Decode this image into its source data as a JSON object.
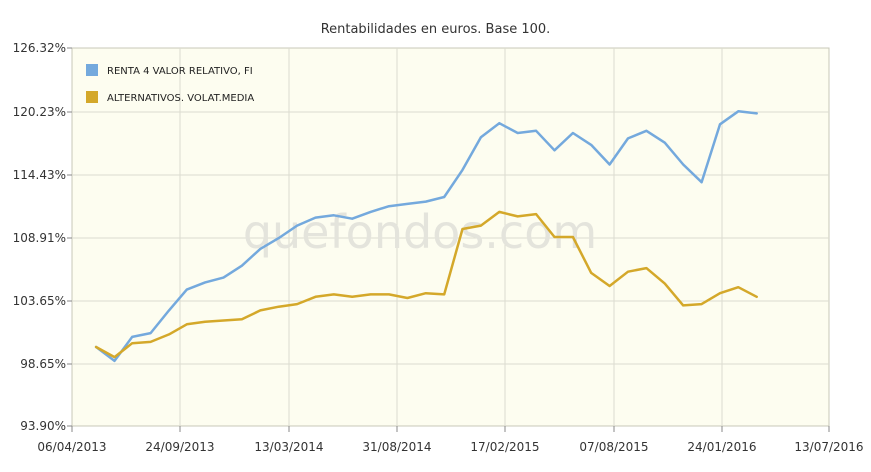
{
  "chart_data": {
    "type": "line",
    "title": "Rentabilidades en euros. Base 100.",
    "watermark": "quefondos.com",
    "xlabel": "",
    "ylabel": "",
    "x_ticks": [
      "06/04/2013",
      "24/09/2013",
      "13/03/2014",
      "31/08/2014",
      "17/02/2015",
      "07/08/2015",
      "24/01/2016",
      "13/07/2016"
    ],
    "y_ticks": [
      "126.32%",
      "120.23%",
      "114.43%",
      "108.91%",
      "103.65%",
      "98.65%",
      "93.90%"
    ],
    "ylim": [
      93.9,
      126.32
    ],
    "grid": true,
    "legend_position": "top-left",
    "series": [
      {
        "name": "RENTA 4 VALOR RELATIVO, FI",
        "color": "#74a9dd",
        "points": [
          [
            "2013-05-14",
            100.0
          ],
          [
            "2013-06-12",
            98.9
          ],
          [
            "2013-07-10",
            100.8
          ],
          [
            "2013-08-08",
            101.1
          ],
          [
            "2013-09-06",
            102.9
          ],
          [
            "2013-10-04",
            104.6
          ],
          [
            "2013-11-02",
            105.2
          ],
          [
            "2013-12-01",
            105.6
          ],
          [
            "2013-12-30",
            106.6
          ],
          [
            "2014-01-28",
            108.0
          ],
          [
            "2014-02-26",
            108.9
          ],
          [
            "2014-03-27",
            110.0
          ],
          [
            "2014-04-25",
            110.7
          ],
          [
            "2014-05-24",
            110.9
          ],
          [
            "2014-06-22",
            110.6
          ],
          [
            "2014-07-21",
            111.2
          ],
          [
            "2014-08-19",
            111.7
          ],
          [
            "2014-09-17",
            111.9
          ],
          [
            "2014-10-16",
            112.1
          ],
          [
            "2014-11-14",
            112.5
          ],
          [
            "2014-12-13",
            114.9
          ],
          [
            "2015-01-11",
            117.9
          ],
          [
            "2015-02-09",
            119.2
          ],
          [
            "2015-03-10",
            118.3
          ],
          [
            "2015-04-08",
            118.5
          ],
          [
            "2015-05-07",
            116.7
          ],
          [
            "2015-06-05",
            118.3
          ],
          [
            "2015-07-04",
            117.2
          ],
          [
            "2015-08-02",
            115.4
          ],
          [
            "2015-08-31",
            117.8
          ],
          [
            "2015-09-29",
            118.5
          ],
          [
            "2015-10-28",
            117.4
          ],
          [
            "2015-11-26",
            115.4
          ],
          [
            "2015-12-25",
            113.8
          ],
          [
            "2016-01-23",
            119.1
          ],
          [
            "2016-02-21",
            120.3
          ],
          [
            "2016-03-21",
            120.1
          ]
        ]
      },
      {
        "name": "ALTERNATIVOS. VOLAT.MEDIA",
        "color": "#d4a82a",
        "points": [
          [
            "2013-05-14",
            100.0
          ],
          [
            "2013-06-12",
            99.2
          ],
          [
            "2013-07-10",
            100.3
          ],
          [
            "2013-08-08",
            100.4
          ],
          [
            "2013-09-06",
            101.0
          ],
          [
            "2013-10-04",
            101.8
          ],
          [
            "2013-11-02",
            102.0
          ],
          [
            "2013-12-01",
            102.1
          ],
          [
            "2013-12-30",
            102.2
          ],
          [
            "2014-01-28",
            102.9
          ],
          [
            "2014-02-26",
            103.2
          ],
          [
            "2014-03-27",
            103.4
          ],
          [
            "2014-04-25",
            104.0
          ],
          [
            "2014-05-24",
            104.2
          ],
          [
            "2014-06-22",
            104.0
          ],
          [
            "2014-07-21",
            104.2
          ],
          [
            "2014-08-19",
            104.2
          ],
          [
            "2014-09-17",
            103.9
          ],
          [
            "2014-10-16",
            104.3
          ],
          [
            "2014-11-14",
            104.2
          ],
          [
            "2014-12-13",
            109.7
          ],
          [
            "2015-01-11",
            110.0
          ],
          [
            "2015-02-09",
            111.2
          ],
          [
            "2015-03-10",
            110.8
          ],
          [
            "2015-04-08",
            111.0
          ],
          [
            "2015-05-07",
            109.0
          ],
          [
            "2015-06-05",
            109.0
          ],
          [
            "2015-07-04",
            106.0
          ],
          [
            "2015-08-02",
            104.9
          ],
          [
            "2015-08-31",
            106.1
          ],
          [
            "2015-09-29",
            106.4
          ],
          [
            "2015-10-28",
            105.1
          ],
          [
            "2015-11-26",
            103.3
          ],
          [
            "2015-12-25",
            103.4
          ],
          [
            "2016-01-23",
            104.3
          ],
          [
            "2016-02-21",
            104.8
          ],
          [
            "2016-03-21",
            104.0
          ]
        ]
      }
    ]
  }
}
